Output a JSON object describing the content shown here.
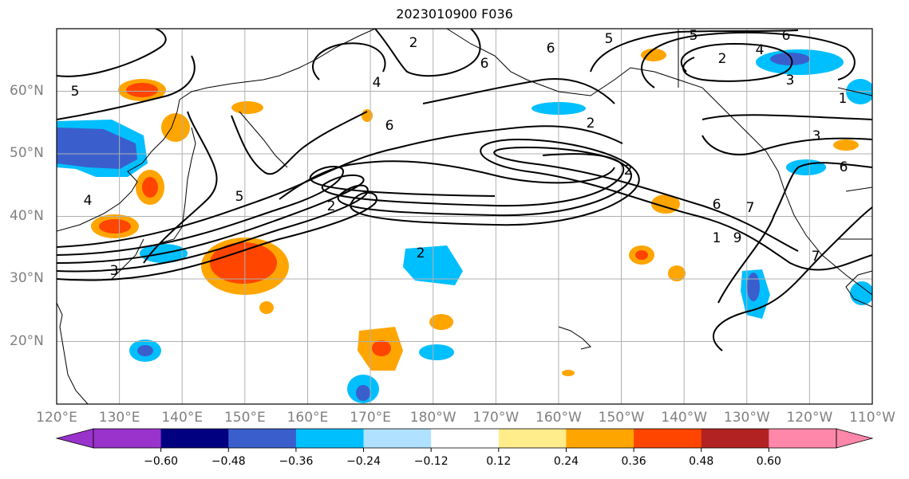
{
  "title": "2023010900 F036",
  "map": {
    "projection": "PlateCarree",
    "lon_range": [
      120,
      250
    ],
    "lat_range": [
      10,
      70
    ],
    "grid": true,
    "lon_tick_labels": [
      "120°E",
      "130°E",
      "140°E",
      "150°E",
      "160°E",
      "170°E",
      "180°W",
      "170°W",
      "160°W",
      "150°W",
      "140°W",
      "130°W",
      "120°W",
      "110°W"
    ],
    "lat_tick_labels": [
      "20°N",
      "30°N",
      "40°N",
      "50°N",
      "60°N"
    ],
    "contour_labels": [
      "2",
      "6",
      "5",
      "4",
      "2",
      "4",
      "3",
      "5",
      "6",
      "5",
      "6",
      "1",
      "6",
      "2",
      "2",
      "3",
      "6",
      "4",
      "3",
      "2",
      "9",
      "6",
      "1",
      "2",
      "7",
      "7",
      "5"
    ]
  },
  "colorbar": {
    "tick_labels": [
      "−0.60",
      "−0.48",
      "−0.36",
      "−0.24",
      "−0.12",
      "0.12",
      "0.24",
      "0.36",
      "0.48",
      "0.60"
    ],
    "colors": [
      "#9933cc",
      "#000080",
      "#3a5fcd",
      "#00bfff",
      "#b0e2ff",
      "#ffffff",
      "#ffec8b",
      "#ffa500",
      "#ff4500",
      "#b22222",
      "#ff88aa"
    ],
    "extend": "both"
  }
}
